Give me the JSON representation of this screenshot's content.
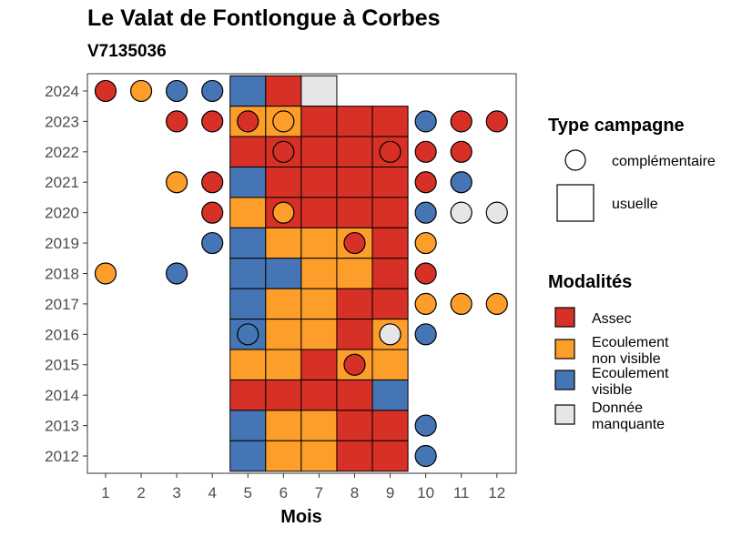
{
  "chart_data": {
    "type": "heatmap",
    "title": "Le Valat de Fontlongue à Corbes",
    "subtitle": "V7135036",
    "xlabel": "Mois",
    "ylabel": "",
    "x_ticks": [
      "1",
      "2",
      "3",
      "4",
      "5",
      "6",
      "7",
      "8",
      "9",
      "10",
      "11",
      "12"
    ],
    "y_ticks": [
      "2012",
      "2013",
      "2014",
      "2015",
      "2016",
      "2017",
      "2018",
      "2019",
      "2020",
      "2021",
      "2022",
      "2023",
      "2024"
    ],
    "colors": {
      "Assec": "#d73027",
      "Ecoulement non visible": "#fd9d2a",
      "Ecoulement visible": "#4575b4",
      "Donnée manquante": "#e6e6e6"
    },
    "legend_shape": {
      "title": "Type campagne",
      "items": [
        {
          "shape": "circle",
          "label": "complémentaire"
        },
        {
          "shape": "square",
          "label": "usuelle"
        }
      ]
    },
    "legend_color": {
      "title": "Modalités",
      "items": [
        {
          "key": "Assec",
          "lines": [
            "Assec"
          ]
        },
        {
          "key": "Ecoulement non visible",
          "lines": [
            "Ecoulement",
            "non visible"
          ]
        },
        {
          "key": "Ecoulement visible",
          "lines": [
            "Ecoulement",
            "visible"
          ]
        },
        {
          "key": "Donnée manquante",
          "lines": [
            "Donnée",
            "manquante"
          ]
        }
      ]
    },
    "usuelle": [
      {
        "year": 2024,
        "month": 5,
        "value": "Ecoulement visible"
      },
      {
        "year": 2024,
        "month": 6,
        "value": "Assec"
      },
      {
        "year": 2024,
        "month": 7,
        "value": "Donnée manquante"
      },
      {
        "year": 2023,
        "month": 5,
        "value": "Ecoulement non visible"
      },
      {
        "year": 2023,
        "month": 6,
        "value": "Ecoulement non visible"
      },
      {
        "year": 2023,
        "month": 7,
        "value": "Assec"
      },
      {
        "year": 2023,
        "month": 8,
        "value": "Assec"
      },
      {
        "year": 2023,
        "month": 9,
        "value": "Assec"
      },
      {
        "year": 2022,
        "month": 5,
        "value": "Assec"
      },
      {
        "year": 2022,
        "month": 6,
        "value": "Assec"
      },
      {
        "year": 2022,
        "month": 7,
        "value": "Assec"
      },
      {
        "year": 2022,
        "month": 8,
        "value": "Assec"
      },
      {
        "year": 2022,
        "month": 9,
        "value": "Assec"
      },
      {
        "year": 2021,
        "month": 5,
        "value": "Ecoulement visible"
      },
      {
        "year": 2021,
        "month": 6,
        "value": "Assec"
      },
      {
        "year": 2021,
        "month": 7,
        "value": "Assec"
      },
      {
        "year": 2021,
        "month": 8,
        "value": "Assec"
      },
      {
        "year": 2021,
        "month": 9,
        "value": "Assec"
      },
      {
        "year": 2020,
        "month": 5,
        "value": "Ecoulement non visible"
      },
      {
        "year": 2020,
        "month": 6,
        "value": "Assec"
      },
      {
        "year": 2020,
        "month": 7,
        "value": "Assec"
      },
      {
        "year": 2020,
        "month": 8,
        "value": "Assec"
      },
      {
        "year": 2020,
        "month": 9,
        "value": "Assec"
      },
      {
        "year": 2019,
        "month": 5,
        "value": "Ecoulement visible"
      },
      {
        "year": 2019,
        "month": 6,
        "value": "Ecoulement non visible"
      },
      {
        "year": 2019,
        "month": 7,
        "value": "Ecoulement non visible"
      },
      {
        "year": 2019,
        "month": 8,
        "value": "Ecoulement non visible"
      },
      {
        "year": 2019,
        "month": 9,
        "value": "Assec"
      },
      {
        "year": 2018,
        "month": 5,
        "value": "Ecoulement visible"
      },
      {
        "year": 2018,
        "month": 6,
        "value": "Ecoulement visible"
      },
      {
        "year": 2018,
        "month": 7,
        "value": "Ecoulement non visible"
      },
      {
        "year": 2018,
        "month": 8,
        "value": "Ecoulement non visible"
      },
      {
        "year": 2018,
        "month": 9,
        "value": "Assec"
      },
      {
        "year": 2017,
        "month": 5,
        "value": "Ecoulement visible"
      },
      {
        "year": 2017,
        "month": 6,
        "value": "Ecoulement non visible"
      },
      {
        "year": 2017,
        "month": 7,
        "value": "Ecoulement non visible"
      },
      {
        "year": 2017,
        "month": 8,
        "value": "Assec"
      },
      {
        "year": 2017,
        "month": 9,
        "value": "Assec"
      },
      {
        "year": 2016,
        "month": 5,
        "value": "Ecoulement visible"
      },
      {
        "year": 2016,
        "month": 6,
        "value": "Ecoulement non visible"
      },
      {
        "year": 2016,
        "month": 7,
        "value": "Ecoulement non visible"
      },
      {
        "year": 2016,
        "month": 8,
        "value": "Assec"
      },
      {
        "year": 2016,
        "month": 9,
        "value": "Ecoulement non visible"
      },
      {
        "year": 2015,
        "month": 5,
        "value": "Ecoulement non visible"
      },
      {
        "year": 2015,
        "month": 6,
        "value": "Ecoulement non visible"
      },
      {
        "year": 2015,
        "month": 7,
        "value": "Assec"
      },
      {
        "year": 2015,
        "month": 8,
        "value": "Ecoulement non visible"
      },
      {
        "year": 2015,
        "month": 9,
        "value": "Ecoulement non visible"
      },
      {
        "year": 2014,
        "month": 5,
        "value": "Assec"
      },
      {
        "year": 2014,
        "month": 6,
        "value": "Assec"
      },
      {
        "year": 2014,
        "month": 7,
        "value": "Assec"
      },
      {
        "year": 2014,
        "month": 8,
        "value": "Assec"
      },
      {
        "year": 2014,
        "month": 9,
        "value": "Ecoulement visible"
      },
      {
        "year": 2013,
        "month": 5,
        "value": "Ecoulement visible"
      },
      {
        "year": 2013,
        "month": 6,
        "value": "Ecoulement non visible"
      },
      {
        "year": 2013,
        "month": 7,
        "value": "Ecoulement non visible"
      },
      {
        "year": 2013,
        "month": 8,
        "value": "Assec"
      },
      {
        "year": 2013,
        "month": 9,
        "value": "Assec"
      },
      {
        "year": 2012,
        "month": 5,
        "value": "Ecoulement visible"
      },
      {
        "year": 2012,
        "month": 6,
        "value": "Ecoulement non visible"
      },
      {
        "year": 2012,
        "month": 7,
        "value": "Ecoulement non visible"
      },
      {
        "year": 2012,
        "month": 8,
        "value": "Assec"
      },
      {
        "year": 2012,
        "month": 9,
        "value": "Assec"
      }
    ],
    "complementaire": [
      {
        "year": 2024,
        "month": 1,
        "value": "Assec"
      },
      {
        "year": 2024,
        "month": 2,
        "value": "Ecoulement non visible"
      },
      {
        "year": 2024,
        "month": 3,
        "value": "Ecoulement visible"
      },
      {
        "year": 2024,
        "month": 4,
        "value": "Ecoulement visible"
      },
      {
        "year": 2023,
        "month": 3,
        "value": "Assec"
      },
      {
        "year": 2023,
        "month": 4,
        "value": "Assec"
      },
      {
        "year": 2023,
        "month": 5,
        "value": "Assec"
      },
      {
        "year": 2023,
        "month": 6,
        "value": "Ecoulement non visible"
      },
      {
        "year": 2023,
        "month": 10,
        "value": "Ecoulement visible"
      },
      {
        "year": 2023,
        "month": 11,
        "value": "Assec"
      },
      {
        "year": 2023,
        "month": 12,
        "value": "Assec"
      },
      {
        "year": 2022,
        "month": 6,
        "value": "Assec"
      },
      {
        "year": 2022,
        "month": 9,
        "value": "Assec"
      },
      {
        "year": 2022,
        "month": 10,
        "value": "Assec"
      },
      {
        "year": 2022,
        "month": 11,
        "value": "Assec"
      },
      {
        "year": 2021,
        "month": 3,
        "value": "Ecoulement non visible"
      },
      {
        "year": 2021,
        "month": 4,
        "value": "Assec"
      },
      {
        "year": 2021,
        "month": 10,
        "value": "Assec"
      },
      {
        "year": 2021,
        "month": 11,
        "value": "Ecoulement visible"
      },
      {
        "year": 2020,
        "month": 4,
        "value": "Assec"
      },
      {
        "year": 2020,
        "month": 6,
        "value": "Ecoulement non visible"
      },
      {
        "year": 2020,
        "month": 10,
        "value": "Ecoulement visible"
      },
      {
        "year": 2020,
        "month": 11,
        "value": "Donnée manquante"
      },
      {
        "year": 2020,
        "month": 12,
        "value": "Donnée manquante"
      },
      {
        "year": 2019,
        "month": 4,
        "value": "Ecoulement visible"
      },
      {
        "year": 2019,
        "month": 8,
        "value": "Assec"
      },
      {
        "year": 2019,
        "month": 10,
        "value": "Ecoulement non visible"
      },
      {
        "year": 2018,
        "month": 1,
        "value": "Ecoulement non visible"
      },
      {
        "year": 2018,
        "month": 3,
        "value": "Ecoulement visible"
      },
      {
        "year": 2018,
        "month": 10,
        "value": "Assec"
      },
      {
        "year": 2017,
        "month": 10,
        "value": "Ecoulement non visible"
      },
      {
        "year": 2017,
        "month": 11,
        "value": "Ecoulement non visible"
      },
      {
        "year": 2017,
        "month": 12,
        "value": "Ecoulement non visible"
      },
      {
        "year": 2016,
        "month": 5,
        "value": "Ecoulement visible"
      },
      {
        "year": 2016,
        "month": 9,
        "value": "Donnée manquante"
      },
      {
        "year": 2016,
        "month": 10,
        "value": "Ecoulement visible"
      },
      {
        "year": 2015,
        "month": 8,
        "value": "Assec"
      },
      {
        "year": 2013,
        "month": 10,
        "value": "Ecoulement visible"
      },
      {
        "year": 2012,
        "month": 10,
        "value": "Ecoulement visible"
      }
    ]
  }
}
